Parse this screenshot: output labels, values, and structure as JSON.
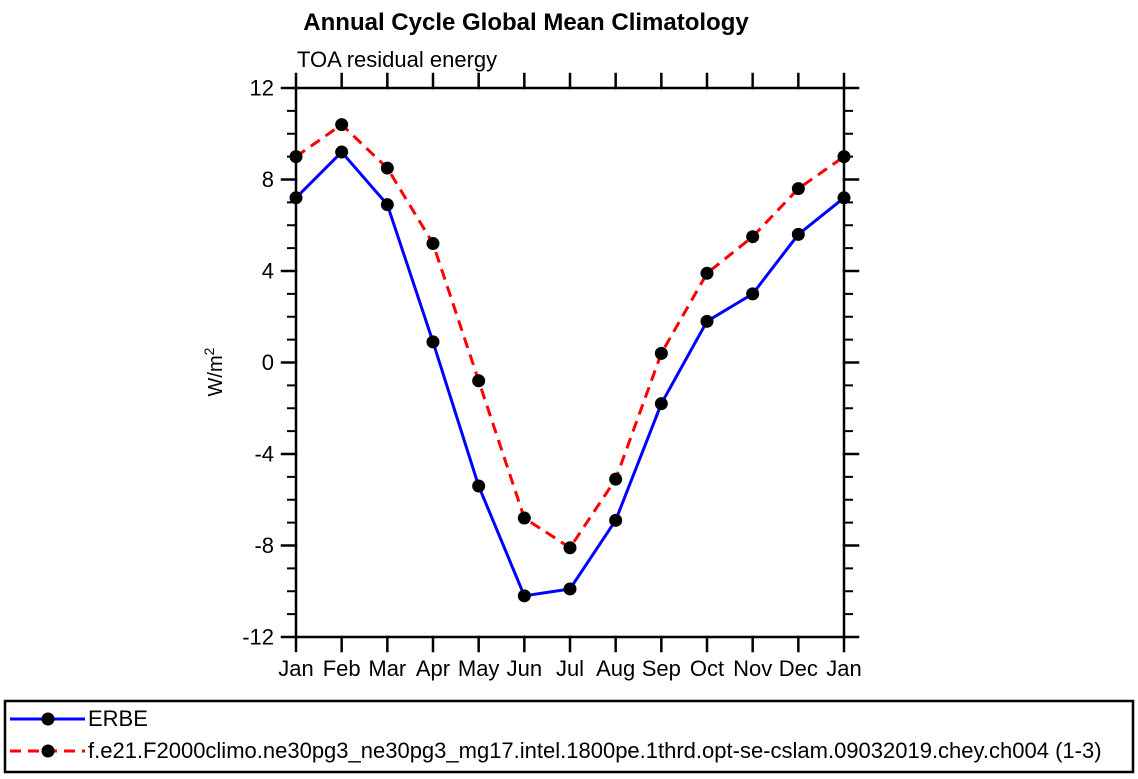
{
  "chart_data": {
    "type": "line",
    "title": "Annual Cycle Global Mean Climatology",
    "subtitle": "TOA residual energy",
    "xlabel": "",
    "ylabel": "W/m^2",
    "categories": [
      "Jan",
      "Feb",
      "Mar",
      "Apr",
      "May",
      "Jun",
      "Jul",
      "Aug",
      "Sep",
      "Oct",
      "Nov",
      "Dec",
      "Jan"
    ],
    "ylim": [
      -12,
      12
    ],
    "y_major_step": 4,
    "y_minor_step": 1,
    "y_major_tick_labels": [
      "-12",
      "-8",
      "-4",
      "0",
      "4",
      "8",
      "12"
    ],
    "grid": false,
    "legend_position": "bottom",
    "axis_color": "#000000",
    "marker_shape": "circle",
    "series": [
      {
        "name": "ERBE",
        "color": "#0000ff",
        "style": "solid",
        "marker_color": "#000000",
        "values": [
          7.2,
          9.2,
          6.9,
          0.9,
          -5.4,
          -10.2,
          -9.9,
          -6.9,
          -1.8,
          1.8,
          3.0,
          5.6,
          7.2
        ]
      },
      {
        "name": "f.e21.F2000climo.ne30pg3_ne30pg3_mg17.intel.1800pe.1thrd.opt-se-cslam.09032019.chey.ch004 (1-3)",
        "color": "#ff0000",
        "style": "dashed",
        "marker_color": "#000000",
        "values": [
          9.0,
          10.4,
          8.5,
          5.2,
          -0.8,
          -6.8,
          -8.1,
          -5.1,
          0.4,
          3.9,
          5.5,
          7.6,
          9.0
        ]
      }
    ]
  }
}
